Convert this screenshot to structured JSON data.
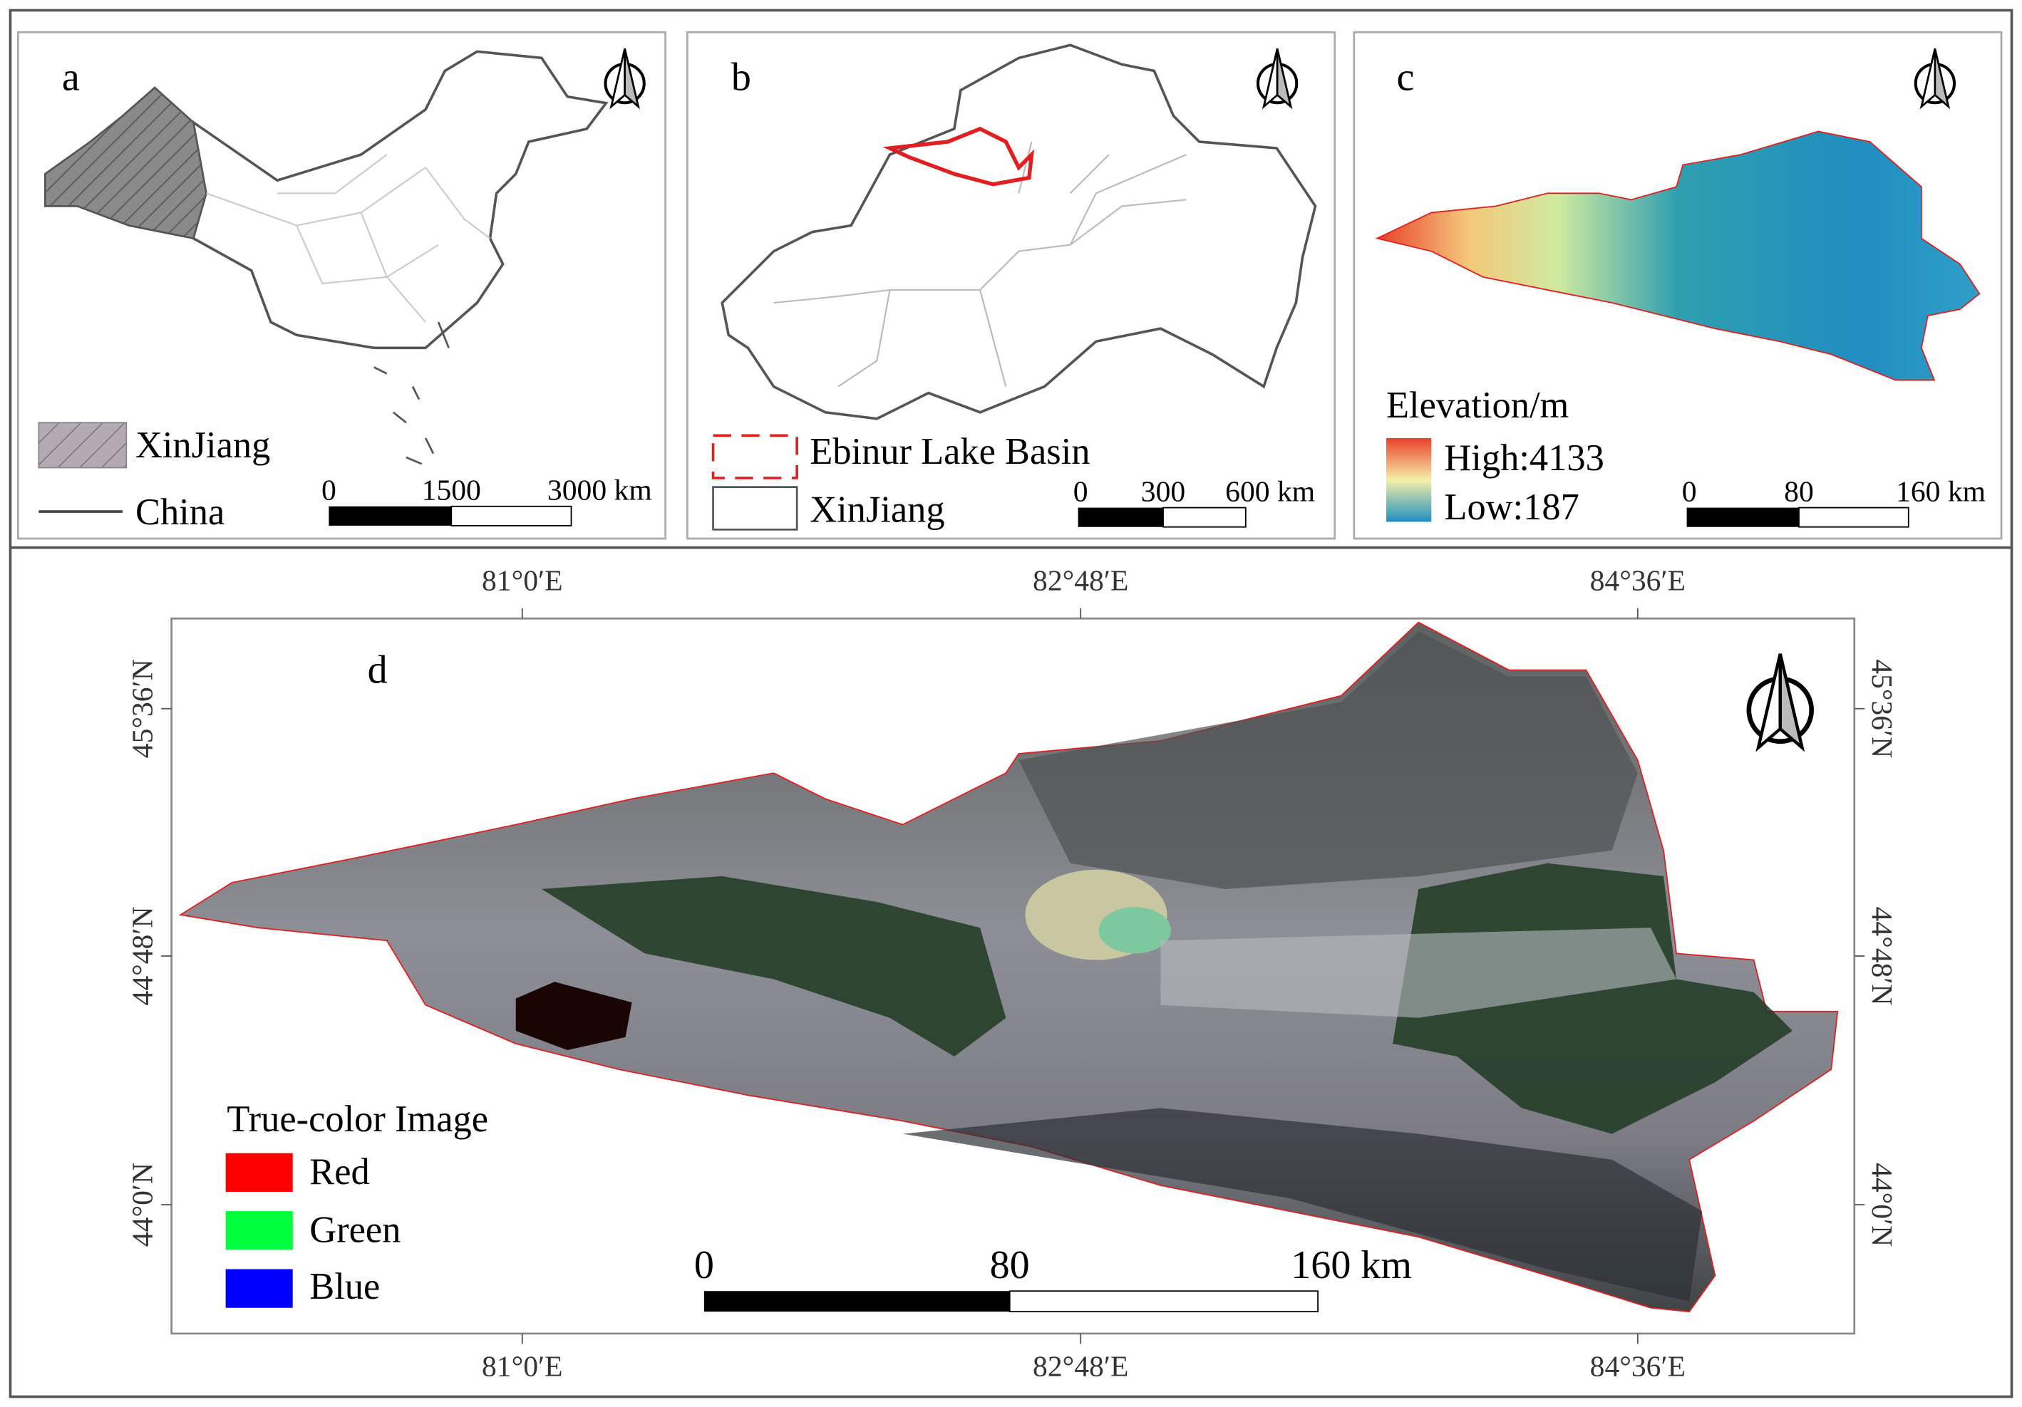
{
  "panels": [
    {
      "label": "a",
      "legend": [
        "XinJiang",
        "China"
      ],
      "scale_bar": [
        "0",
        "1500",
        "3000 km"
      ]
    },
    {
      "label": "b",
      "legend": [
        "Ebinur Lake Basin",
        "XinJiang"
      ],
      "scale_bar": [
        "0",
        "300",
        "600 km"
      ]
    },
    {
      "label": "c",
      "legend_title": "Elevation/m",
      "legend": [
        "High:4133",
        "Low:187"
      ],
      "scale_bar": [
        "0",
        "80",
        "160 km"
      ]
    },
    {
      "label": "d",
      "legend_title": "True-color Image",
      "legend": [
        "Red",
        "Green",
        "Blue"
      ],
      "scale_bar": [
        "0",
        "80",
        "160 km"
      ],
      "x_ticks": [
        "81°0′E",
        "82°48′E",
        "84°36′E"
      ],
      "y_ticks": [
        "45°36′N",
        "44°48′N",
        "44°0′N"
      ]
    }
  ]
}
